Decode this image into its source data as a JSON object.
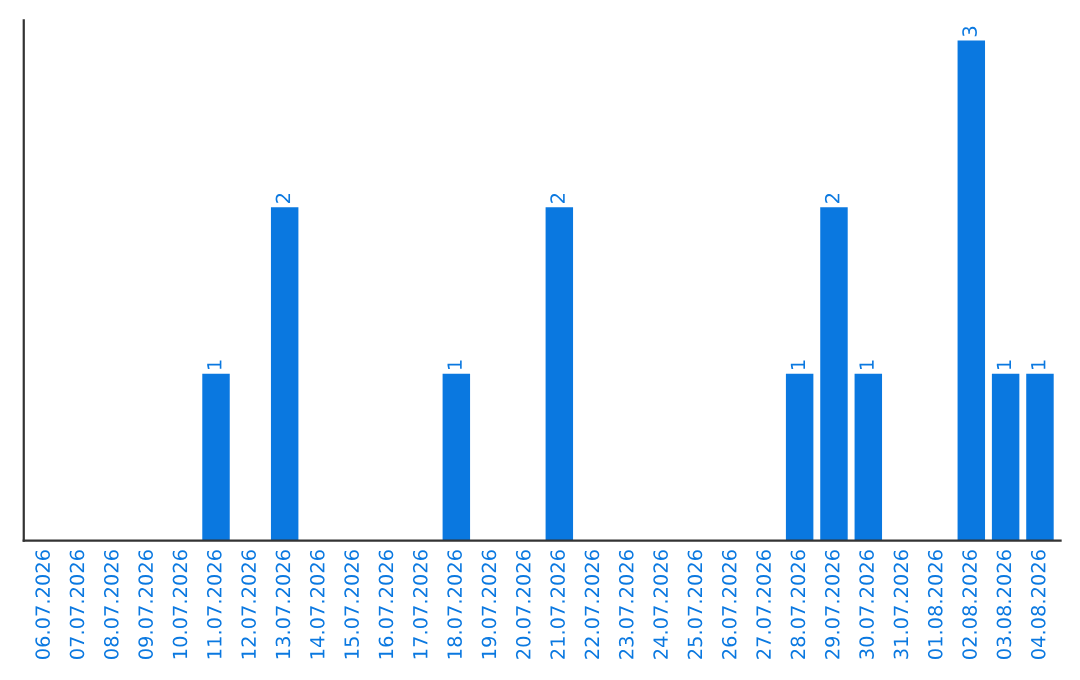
{
  "chart_data": {
    "type": "bar",
    "categories": [
      "06.07.2026",
      "07.07.2026",
      "08.07.2026",
      "09.07.2026",
      "10.07.2026",
      "11.07.2026",
      "12.07.2026",
      "13.07.2026",
      "14.07.2026",
      "15.07.2026",
      "16.07.2026",
      "17.07.2026",
      "18.07.2026",
      "19.07.2026",
      "20.07.2026",
      "21.07.2026",
      "22.07.2026",
      "23.07.2026",
      "24.07.2026",
      "25.07.2026",
      "26.07.2026",
      "27.07.2026",
      "28.07.2026",
      "29.07.2026",
      "30.07.2026",
      "31.07.2026",
      "01.08.2026",
      "02.08.2026",
      "03.08.2026",
      "04.08.2026"
    ],
    "values": [
      0,
      0,
      0,
      0,
      0,
      1,
      0,
      2,
      0,
      0,
      0,
      0,
      1,
      0,
      0,
      2,
      0,
      0,
      0,
      0,
      0,
      0,
      1,
      2,
      1,
      0,
      0,
      3,
      1,
      1
    ],
    "value_labels": [
      null,
      null,
      null,
      null,
      null,
      "1",
      null,
      "2",
      null,
      null,
      null,
      null,
      "1",
      null,
      null,
      "2",
      null,
      null,
      null,
      null,
      null,
      null,
      "1",
      "2",
      "1",
      null,
      null,
      "3",
      "1",
      "1"
    ],
    "color": "#0a78e0",
    "tick_labels": "x",
    "grid": false,
    "legend": false
  }
}
